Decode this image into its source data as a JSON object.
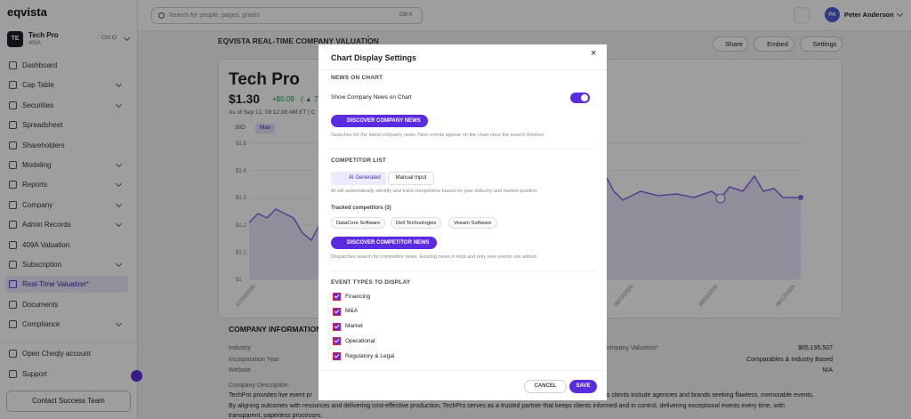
{
  "sidebar": {
    "logo": "eqvista",
    "company": {
      "initials": "TE",
      "name": "Tech Pro",
      "subtitle": "409A",
      "shortcut": "Ctrl O"
    },
    "nav": [
      {
        "label": "Dashboard",
        "submenu": false
      },
      {
        "label": "Cap Table",
        "submenu": true
      },
      {
        "label": "Securities",
        "submenu": true
      },
      {
        "label": "Spreadsheet",
        "submenu": false
      },
      {
        "label": "Shareholders",
        "submenu": false
      },
      {
        "label": "Modeling",
        "submenu": true
      },
      {
        "label": "Reports",
        "submenu": true
      },
      {
        "label": "Company",
        "submenu": true
      },
      {
        "label": "Admin Records",
        "submenu": true
      },
      {
        "label": "409A Valuation",
        "submenu": false
      },
      {
        "label": "Subscription",
        "submenu": true
      },
      {
        "label": "Real-Time Valuation*",
        "submenu": false,
        "active": true
      },
      {
        "label": "Documents",
        "submenu": false
      },
      {
        "label": "Compliance",
        "submenu": true
      }
    ],
    "footer": [
      "Open Cheqly account",
      "Support"
    ],
    "contact_button": "Contact Success Team"
  },
  "topbar": {
    "search_placeholder": "Search for people, pages, grants",
    "search_shortcut": "Ctrl K",
    "user": {
      "initials": "PA",
      "name": "Peter Anderson"
    }
  },
  "page": {
    "title": "EQVISTA REAL-TIME COMPANY VALUATION",
    "title_mark": "*",
    "actions": [
      "Share",
      "Embed",
      "Settings"
    ],
    "card": {
      "company": "Tech Pro",
      "price": "$1.30",
      "change": "+$0.09",
      "change_pct": "( ▲ 7.",
      "timestamp": "As of Sep 12, 08:12:38 AM ET | C",
      "ranges": [
        "30D",
        "Max"
      ],
      "yticks": [
        "$1.5",
        "$1.4",
        "$1.3",
        "$1.2",
        "$1.1",
        "$1"
      ],
      "xticks": [
        "07/20/2026",
        "08/02/2026",
        "08/05/2026",
        "08/12/2026"
      ]
    },
    "company_information": {
      "title": "COMPANY INFORMATION",
      "labels": [
        "Industry",
        "Incorporation Year",
        "Website",
        "Company Description"
      ],
      "right_label": "ompany Valuation*",
      "right_values": [
        "$65,195,507",
        "Comparables & Industry Based",
        "N/A"
      ],
      "description": [
        "TechPro provides live event pr",
        "s clients include agencies and brands seeking flawless, memorable events.",
        "By aligning outcomes with resources and delivering cost-effective production, TechPro serves as a trusted partner that keeps clients informed and in control, delivering exceptional events every time, with",
        "transparent, paperless processes."
      ]
    }
  },
  "modal": {
    "title": "Chart Display Settings",
    "close": "×",
    "news": {
      "heading": "NEWS ON CHART",
      "toggle_label": "Show Company News on Chart",
      "toggle_on": true,
      "button": "DISCOVER COMPANY NEWS",
      "help": "Searches for the latest company news. New events appear on the chart once the search finishes."
    },
    "competitors": {
      "heading": "COMPETITOR LIST",
      "tabs": [
        "AI Generated",
        "Manual Input"
      ],
      "help": "AI will automatically identify and track competitors based on your industry and market position",
      "tracked_label": "Tracked competitors (3)",
      "tracked": [
        "DataCore Software",
        "Dell Technologies",
        "Veeam Software"
      ],
      "button": "DISCOVER COMPETITOR NEWS",
      "button_help": "Dispatches search for competitor news. Existing news is kept and only new events are added."
    },
    "events": {
      "heading": "EVENT TYPES TO DISPLAY",
      "types": [
        "Financing",
        "M&A",
        "Market",
        "Operational",
        "Regulatory & Legal"
      ]
    },
    "buttons": [
      "CANCEL",
      "SAVE"
    ]
  }
}
